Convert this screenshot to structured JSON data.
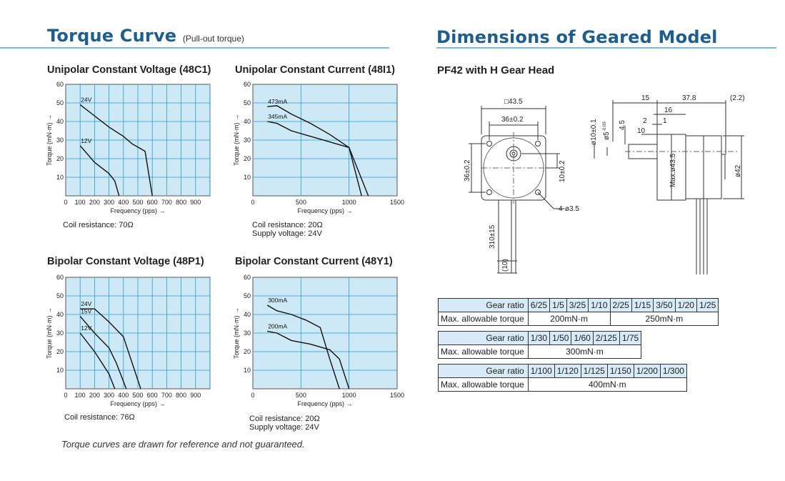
{
  "left": {
    "title": "Torque Curve",
    "subtitle": "(Pull-out torque)",
    "charts": [
      {
        "title": "Unipolar Constant Voltage (48C1)",
        "notes": [
          "Coil resistance: 70Ω"
        ]
      },
      {
        "title": "Unipolar Constant Current (48I1)",
        "notes": [
          "Coil resistance: 20Ω",
          "Supply voltage: 24V"
        ]
      },
      {
        "title": "Bipolar Constant Voltage (48P1)",
        "notes": [
          "Coil resistance: 76Ω"
        ]
      },
      {
        "title": "Bipolar Constant Current (48Y1)",
        "notes": [
          "Coil resistance: 20Ω",
          "Supply voltage: 24V"
        ]
      }
    ],
    "footnote": "Torque curves are drawn for reference and not guaranteed."
  },
  "right": {
    "title": "Dimensions of Geared Model",
    "subtitle": "PF42 with H Gear Head",
    "drawing_labels": {
      "sq": "□43.5",
      "w36": "36±0.2",
      "h36": "36±0.2",
      "d10": "10±0.2",
      "holes": "4-ø3.5",
      "lead": "310±15",
      "lead10": "(10)",
      "d15": "15",
      "d378": "37.8",
      "d22": "(2.2)",
      "d16": "16",
      "d2": "2",
      "d1": "1",
      "d10b": "10",
      "shaft10": "ø10±0.1",
      "shaft5": "ø5",
      "shaft5tol": "-0.05",
      "d45": "4.5",
      "max435": "Max.ø43.5",
      "d42": "ø42"
    },
    "tables": [
      {
        "ratio_label": "Gear ratio",
        "torque_label": "Max. allowable torque",
        "groups": [
          {
            "ratios": [
              "6/25",
              "1/5",
              "3/25",
              "1/10"
            ],
            "torque": "200mN·m"
          },
          {
            "ratios": [
              "2/25",
              "1/15",
              "3/50",
              "1/20",
              "1/25"
            ],
            "torque": "250mN·m"
          }
        ]
      },
      {
        "ratio_label": "Gear ratio",
        "torque_label": "Max. allowable torque",
        "groups": [
          {
            "ratios": [
              "1/30",
              "1/50",
              "1/60",
              "2/125",
              "1/75"
            ],
            "torque": "300mN·m"
          }
        ]
      },
      {
        "ratio_label": "Gear ratio",
        "torque_label": "Max. allowable torque",
        "groups": [
          {
            "ratios": [
              "1/100",
              "1/120",
              "1/125",
              "1/150",
              "1/200",
              "1/300"
            ],
            "torque": "400mN·m"
          }
        ]
      }
    ]
  },
  "chart_data": [
    {
      "type": "line",
      "title": "Unipolar Constant Voltage (48C1)",
      "xlabel": "Frequency (pps) →",
      "ylabel": "Torque (mN·m) →",
      "xlim": [
        0,
        1000
      ],
      "ylim": [
        0,
        60
      ],
      "xticks": [
        0,
        100,
        200,
        300,
        400,
        500,
        600,
        700,
        800,
        900
      ],
      "yticks": [
        10,
        20,
        30,
        40,
        50,
        60
      ],
      "grid": true,
      "series": [
        {
          "name": "24V",
          "points": [
            [
              100,
              49
            ],
            [
              200,
              43
            ],
            [
              300,
              37
            ],
            [
              400,
              32
            ],
            [
              460,
              28
            ],
            [
              550,
              24
            ],
            [
              600,
              0
            ]
          ]
        },
        {
          "name": "12V",
          "points": [
            [
              100,
              27
            ],
            [
              200,
              18
            ],
            [
              300,
              12
            ],
            [
              340,
              8
            ],
            [
              370,
              0
            ]
          ]
        }
      ]
    },
    {
      "type": "line",
      "title": "Unipolar Constant Current (48I1)",
      "xlabel": "Frequency (pps) →",
      "ylabel": "Torque (mN·m) →",
      "xlim": [
        0,
        1500
      ],
      "ylim": [
        0,
        60
      ],
      "xticks": [
        0,
        500,
        1000,
        1500
      ],
      "yticks": [
        10,
        20,
        30,
        40,
        50,
        60
      ],
      "grid": true,
      "series": [
        {
          "name": "473mA",
          "points": [
            [
              150,
              48
            ],
            [
              250,
              48.5
            ],
            [
              400,
              44
            ],
            [
              600,
              39
            ],
            [
              800,
              33
            ],
            [
              1000,
              26
            ],
            [
              1200,
              0
            ]
          ]
        },
        {
          "name": "345mA",
          "points": [
            [
              150,
              40
            ],
            [
              250,
              39
            ],
            [
              400,
              35
            ],
            [
              600,
              32
            ],
            [
              800,
              29
            ],
            [
              1000,
              26
            ],
            [
              1130,
              0
            ]
          ]
        }
      ]
    },
    {
      "type": "line",
      "title": "Bipolar Constant Voltage (48P1)",
      "xlabel": "Frequency (pps) →",
      "ylabel": "Torque (mN·m) →",
      "xlim": [
        0,
        1000
      ],
      "ylim": [
        0,
        60
      ],
      "xticks": [
        0,
        100,
        200,
        300,
        400,
        500,
        600,
        700,
        800,
        900
      ],
      "yticks": [
        10,
        20,
        30,
        40,
        50,
        60
      ],
      "grid": true,
      "series": [
        {
          "name": "24V",
          "points": [
            [
              100,
              43
            ],
            [
              200,
              43
            ],
            [
              300,
              36
            ],
            [
              400,
              28
            ],
            [
              520,
              0
            ]
          ]
        },
        {
          "name": "15V",
          "points": [
            [
              100,
              39
            ],
            [
              200,
              30
            ],
            [
              300,
              22
            ],
            [
              350,
              14
            ],
            [
              420,
              0
            ]
          ]
        },
        {
          "name": "12V",
          "points": [
            [
              100,
              30
            ],
            [
              200,
              20
            ],
            [
              300,
              8
            ],
            [
              340,
              0
            ]
          ]
        }
      ]
    },
    {
      "type": "line",
      "title": "Bipolar Constant Current (48Y1)",
      "xlabel": "Frequency (pps) →",
      "ylabel": "Torque (mN·m) →",
      "xlim": [
        0,
        1500
      ],
      "ylim": [
        0,
        60
      ],
      "xticks": [
        0,
        500,
        1000,
        1500
      ],
      "yticks": [
        10,
        20,
        30,
        40,
        50,
        60
      ],
      "grid": true,
      "series": [
        {
          "name": "300mA",
          "points": [
            [
              150,
              45
            ],
            [
              250,
              42
            ],
            [
              400,
              40
            ],
            [
              550,
              37
            ],
            [
              700,
              33
            ],
            [
              800,
              16
            ],
            [
              900,
              0
            ]
          ]
        },
        {
          "name": "200mA",
          "points": [
            [
              150,
              31
            ],
            [
              250,
              30
            ],
            [
              400,
              26
            ],
            [
              600,
              24
            ],
            [
              800,
              21
            ],
            [
              900,
              16
            ],
            [
              1000,
              0
            ]
          ]
        }
      ]
    }
  ]
}
